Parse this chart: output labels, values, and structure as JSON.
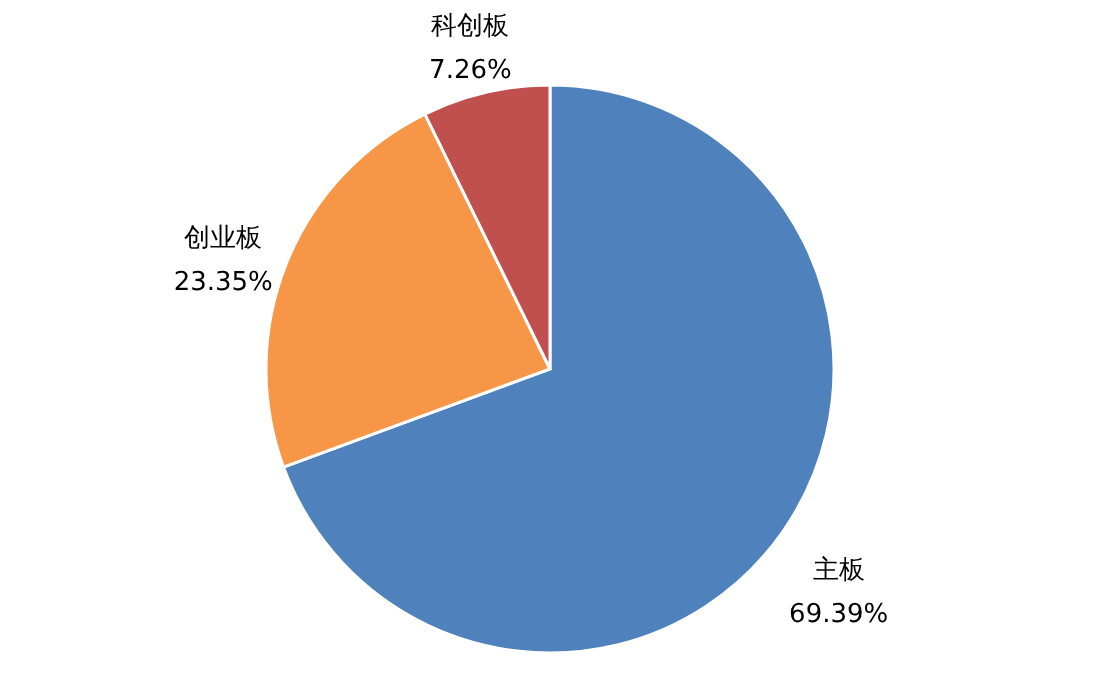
{
  "chart_data": {
    "type": "pie",
    "categories": [
      "主板",
      "创业板",
      "科创板"
    ],
    "values": [
      69.39,
      23.35,
      7.26
    ],
    "value_labels": [
      "69.39%",
      "23.35%",
      "7.26%"
    ],
    "colors": [
      "#4f81bd",
      "#f79646",
      "#c0504d"
    ],
    "legend": false
  }
}
